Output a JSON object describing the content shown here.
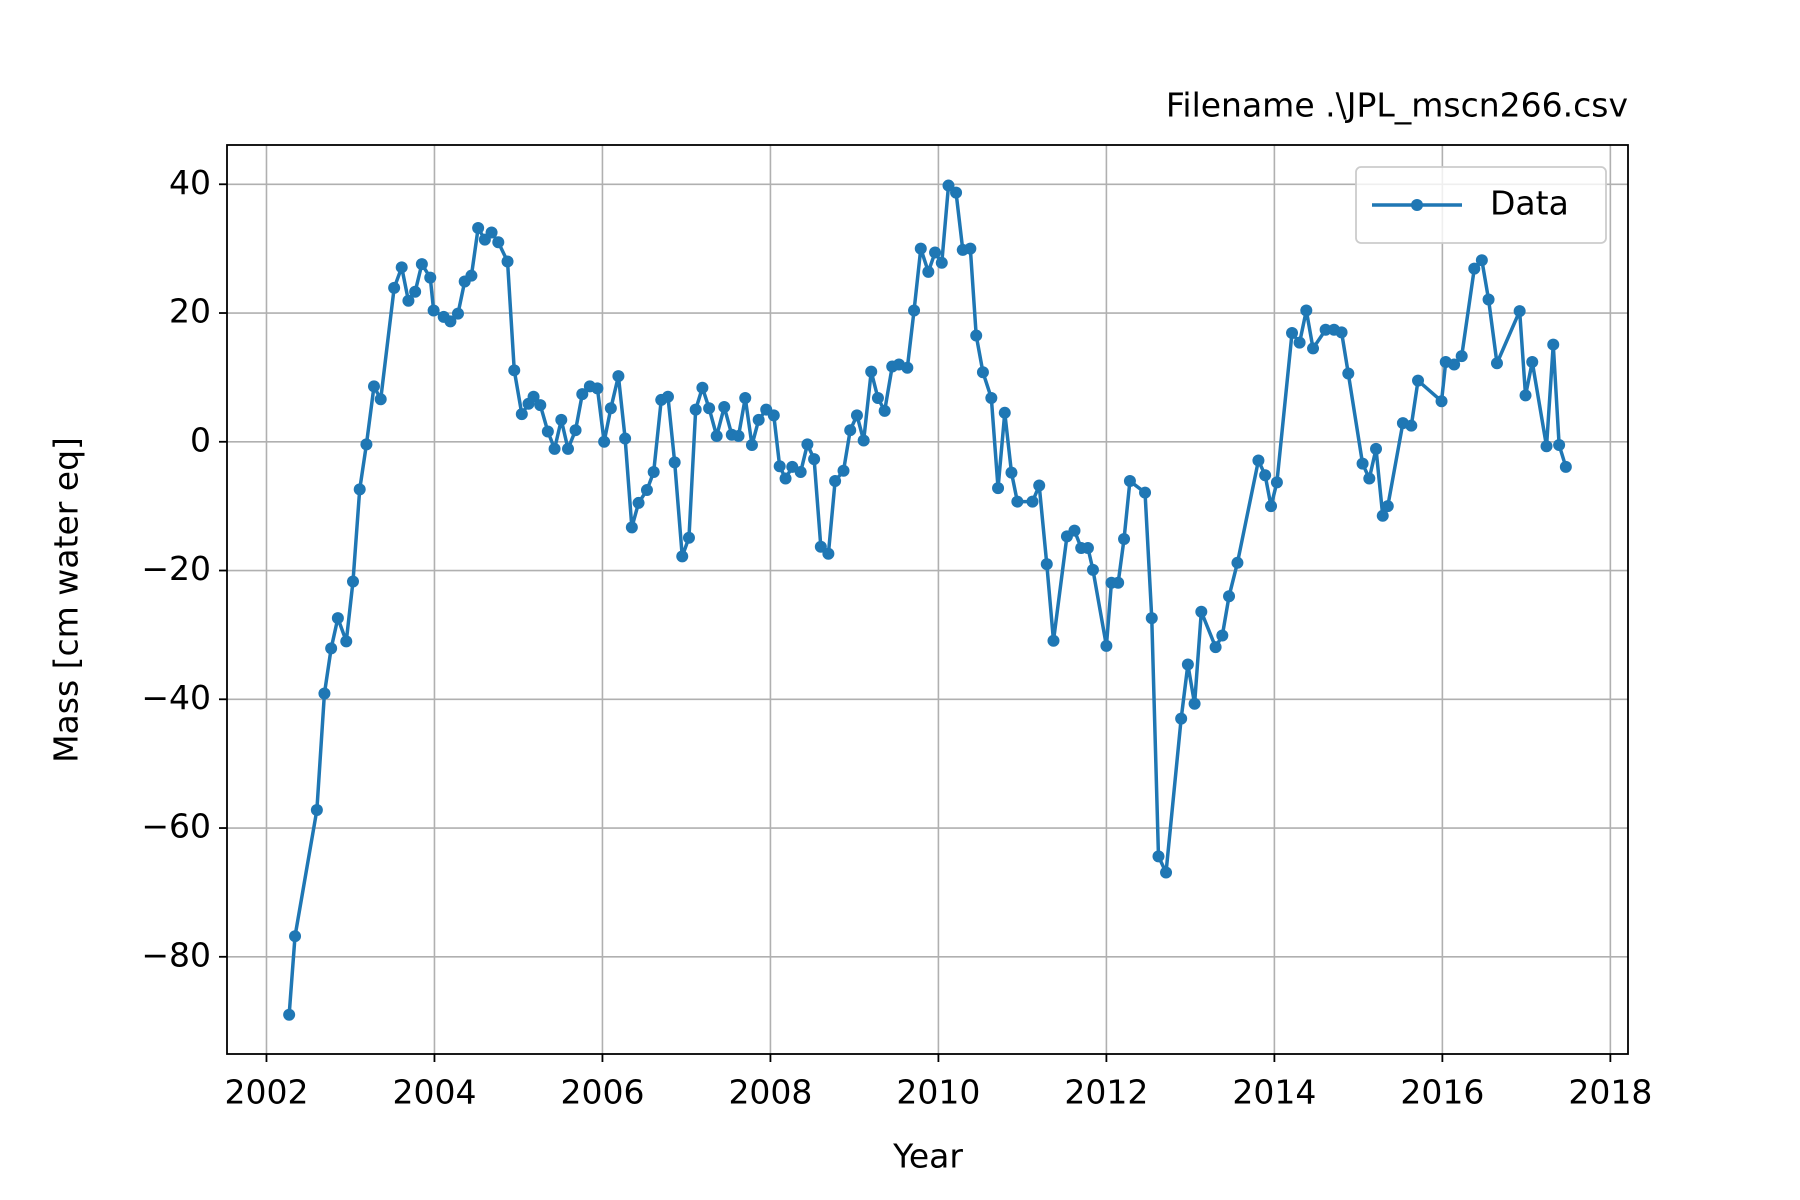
{
  "chart_data": {
    "type": "line",
    "title": "Filename .\\JPL_mscn266.csv",
    "x_label": "Year",
    "y_label": "Mass [cm water eq]",
    "x": [
      2002.27,
      2002.34,
      2002.6,
      2002.69,
      2002.77,
      2002.85,
      2002.95,
      2003.03,
      2003.11,
      2003.19,
      2003.28,
      2003.36,
      2003.52,
      2003.61,
      2003.69,
      2003.77,
      2003.85,
      2003.95,
      2003.99,
      2004.11,
      2004.19,
      2004.28,
      2004.36,
      2004.44,
      2004.52,
      2004.6,
      2004.68,
      2004.76,
      2004.87,
      2004.95,
      2005.04,
      2005.12,
      2005.18,
      2005.26,
      2005.35,
      2005.43,
      2005.51,
      2005.59,
      2005.68,
      2005.76,
      2005.85,
      2005.94,
      2006.02,
      2006.1,
      2006.19,
      2006.27,
      2006.35,
      2006.43,
      2006.53,
      2006.61,
      2006.7,
      2006.78,
      2006.86,
      2006.95,
      2007.03,
      2007.11,
      2007.19,
      2007.27,
      2007.36,
      2007.45,
      2007.54,
      2007.62,
      2007.7,
      2007.78,
      2007.86,
      2007.95,
      2008.04,
      2008.11,
      2008.18,
      2008.26,
      2008.36,
      2008.44,
      2008.52,
      2008.6,
      2008.69,
      2008.77,
      2008.87,
      2008.95,
      2009.03,
      2009.11,
      2009.2,
      2009.28,
      2009.36,
      2009.45,
      2009.53,
      2009.63,
      2009.71,
      2009.79,
      2009.88,
      2009.96,
      2010.04,
      2010.12,
      2010.21,
      2010.29,
      2010.38,
      2010.45,
      2010.53,
      2010.63,
      2010.71,
      2010.79,
      2010.87,
      2010.94,
      2011.12,
      2011.2,
      2011.29,
      2011.37,
      2011.53,
      2011.62,
      2011.7,
      2011.78,
      2011.84,
      2012.0,
      2012.06,
      2012.14,
      2012.21,
      2012.28,
      2012.46,
      2012.54,
      2012.62,
      2012.71,
      2012.89,
      2012.97,
      2013.05,
      2013.13,
      2013.3,
      2013.38,
      2013.46,
      2013.56,
      2013.81,
      2013.89,
      2013.96,
      2014.03,
      2014.21,
      2014.3,
      2014.38,
      2014.46,
      2014.61,
      2014.71,
      2014.8,
      2014.88,
      2015.05,
      2015.13,
      2015.21,
      2015.29,
      2015.35,
      2015.53,
      2015.63,
      2015.71,
      2015.99,
      2016.04,
      2016.14,
      2016.23,
      2016.38,
      2016.47,
      2016.55,
      2016.65,
      2016.92,
      2016.99,
      2017.07,
      2017.24,
      2017.32,
      2017.39,
      2017.47
    ],
    "series": [
      {
        "name": "Data",
        "color": "#1f77b4",
        "values": [
          -89,
          -76.8,
          -57.2,
          -39.1,
          -32.1,
          -27.4,
          -31.0,
          -21.7,
          -7.4,
          -0.4,
          8.6,
          6.6,
          23.9,
          27.1,
          21.9,
          23.3,
          27.6,
          25.5,
          20.4,
          19.4,
          18.7,
          19.9,
          24.9,
          25.8,
          33.2,
          31.4,
          32.5,
          31.0,
          28.0,
          11.1,
          4.3,
          5.9,
          7.0,
          5.7,
          1.6,
          -1.1,
          3.4,
          -1.1,
          1.8,
          7.4,
          8.6,
          8.3,
          0,
          5.2,
          10.2,
          0.5,
          -13.3,
          -9.5,
          -7.5,
          -4.7,
          6.5,
          7.0,
          -3.2,
          -17.8,
          -14.9,
          5.0,
          8.4,
          5.2,
          0.9,
          5.4,
          1.1,
          0.9,
          6.8,
          -0.5,
          3.4,
          5.0,
          4.1,
          -3.8,
          -5.7,
          -3.9,
          -4.7,
          -0.4,
          -2.7,
          -16.3,
          -17.4,
          -6.1,
          -4.5,
          1.8,
          4.1,
          0.2,
          10.9,
          6.8,
          4.8,
          11.7,
          12.0,
          11.5,
          20.4,
          30.0,
          26.4,
          29.4,
          27.8,
          39.8,
          38.7,
          29.8,
          30.0,
          16.5,
          10.8,
          6.8,
          -7.2,
          4.5,
          -4.8,
          -9.3,
          -9.3,
          -6.8,
          -19.0,
          -30.9,
          -14.7,
          -13.8,
          -16.5,
          -16.5,
          -19.9,
          -31.7,
          -21.9,
          -21.9,
          -15.1,
          -6.1,
          -7.9,
          -27.4,
          -64.4,
          -66.9,
          -43.0,
          -34.6,
          -40.7,
          -26.4,
          -31.9,
          -30.1,
          -24.0,
          -18.8,
          -2.9,
          -5.2,
          -10.0,
          -6.3,
          16.9,
          15.4,
          20.4,
          14.5,
          17.4,
          17.4,
          17.0,
          10.6,
          -3.4,
          -5.7,
          -1.1,
          -11.5,
          -10.0,
          2.9,
          2.5,
          9.5,
          6.3,
          12.4,
          12.0,
          13.3,
          26.9,
          28.2,
          22.1,
          12.2,
          20.3,
          7.2,
          12.4,
          -0.7,
          15.1,
          -0.5,
          -3.9
        ]
      }
    ],
    "xlim": [
      2001.53,
      2018.21
    ],
    "ylim": [
      -95.1,
      46.1
    ],
    "xticks": [
      2002,
      2004,
      2006,
      2008,
      2010,
      2012,
      2014,
      2016,
      2018
    ],
    "yticks": [
      {
        "value": -80,
        "label": "−80"
      },
      {
        "value": -60,
        "label": "−60"
      },
      {
        "value": -40,
        "label": "−40"
      },
      {
        "value": -20,
        "label": "−20"
      },
      0,
      20,
      40
    ],
    "grid": true,
    "legend": "upper right"
  }
}
